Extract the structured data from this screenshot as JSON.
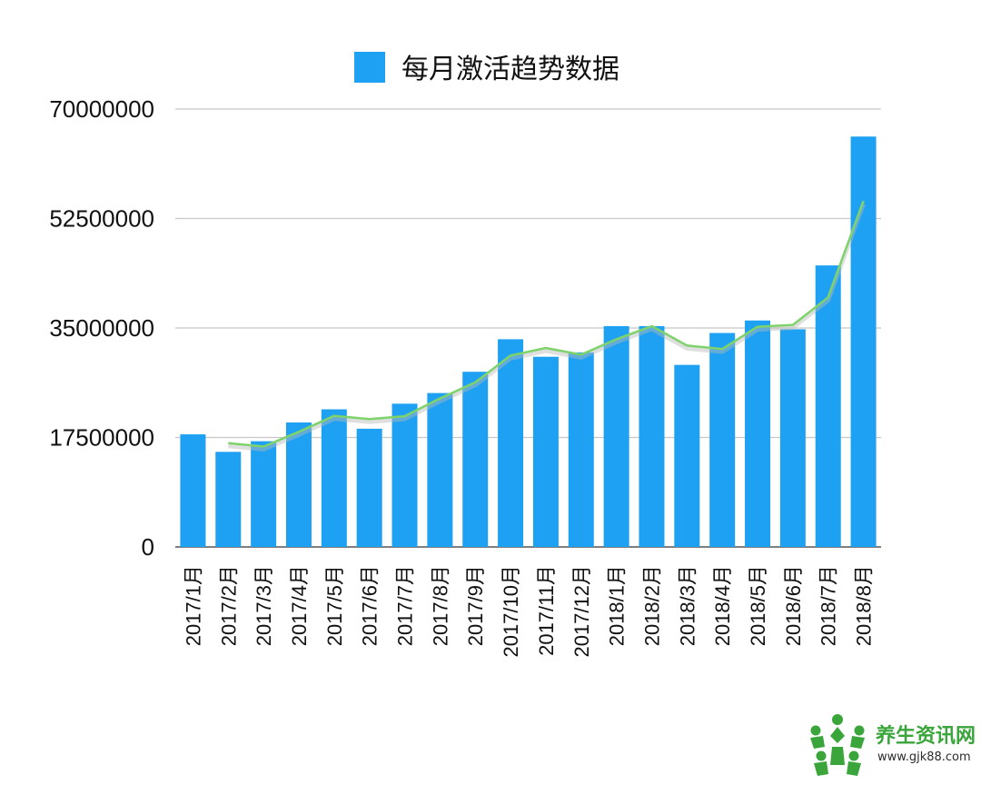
{
  "chart_data": {
    "type": "bar",
    "title": "",
    "xlabel": "",
    "ylabel": "",
    "legend": {
      "position": "top-center",
      "entries": [
        {
          "name": "每月激活趋势数据",
          "color": "#1ea1f2"
        }
      ]
    },
    "ylim": [
      0,
      70000000
    ],
    "yticks": [
      "0",
      "17500000",
      "35000000",
      "52500000",
      "70000000"
    ],
    "grid": true,
    "categories": [
      "2017/1月",
      "2017/2月",
      "2017/3月",
      "2017/4月",
      "2017/5月",
      "2017/6月",
      "2017/7月",
      "2017/8月",
      "2017/9月",
      "2017/10月",
      "2017/11月",
      "2017/12月",
      "2018/1月",
      "2018/2月",
      "2018/3月",
      "2018/4月",
      "2018/5月",
      "2018/6月",
      "2018/7月",
      "2018/8月"
    ],
    "series": [
      {
        "name": "每月激活趋势数据",
        "color": "#1ea1f2",
        "values": [
          18000000,
          15200000,
          16900000,
          19900000,
          22000000,
          18900000,
          22900000,
          24600000,
          28000000,
          33200000,
          30400000,
          31100000,
          35300000,
          35300000,
          29100000,
          34200000,
          36200000,
          34800000,
          45000000,
          65600000
        ]
      }
    ],
    "trendline": {
      "type": "moving-average",
      "color": "#7ed36a",
      "values": [
        null,
        16600000,
        16050000,
        18400000,
        20950000,
        20450000,
        20900000,
        23750000,
        26300000,
        30600000,
        31800000,
        30750000,
        33200000,
        35300000,
        32200000,
        31650000,
        35200000,
        35500000,
        39900000,
        55300000
      ]
    }
  },
  "watermark": {
    "title": "养生资讯网",
    "url": "www.gjk88.com",
    "color": "#39a53a"
  }
}
